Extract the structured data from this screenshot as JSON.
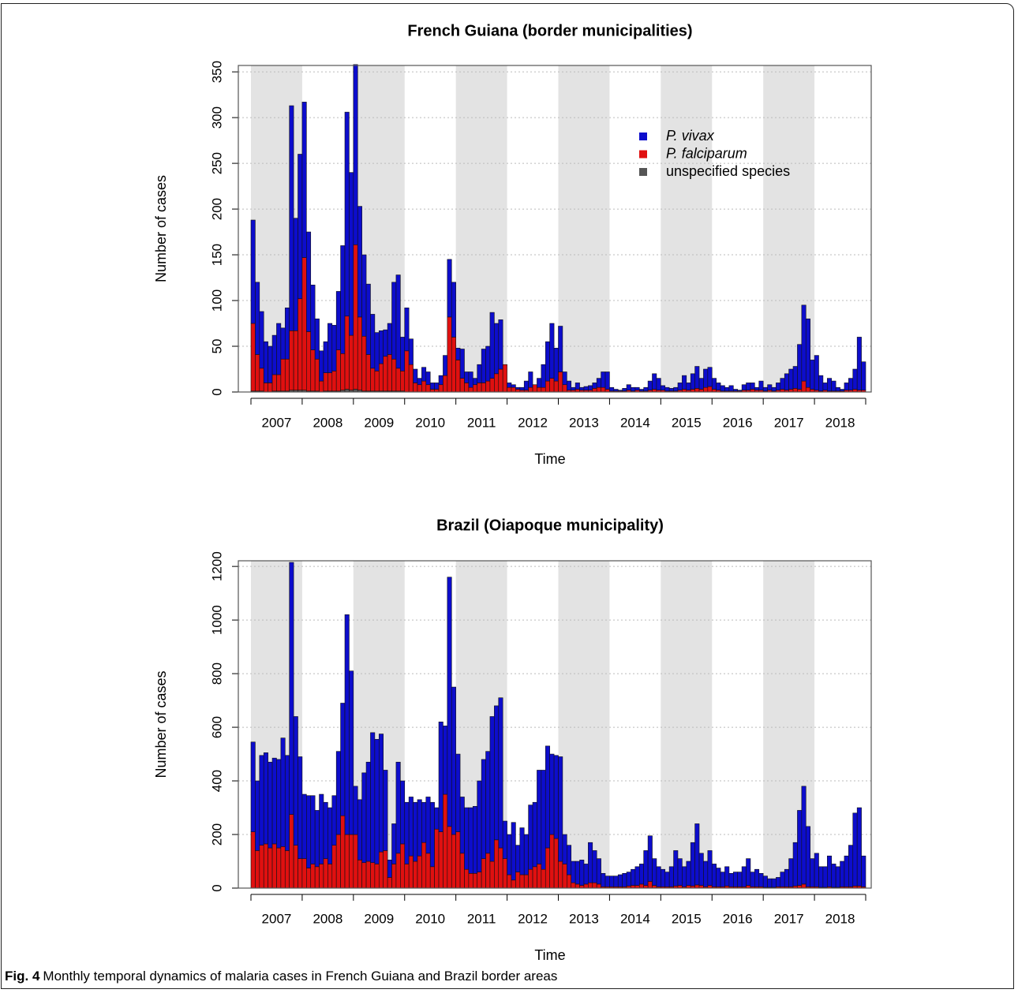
{
  "chart_data": [
    {
      "type": "bar",
      "stacked": true,
      "title": "French Guiana (border municipalities)",
      "x_label": "Time",
      "y_label": "Number of cases",
      "categories": [
        null,
        null,
        null,
        null,
        null,
        null,
        "2007",
        null,
        null,
        null,
        null,
        null,
        null,
        null,
        null,
        null,
        null,
        null,
        "2008",
        null,
        null,
        null,
        null,
        null,
        null,
        null,
        null,
        null,
        null,
        null,
        "2009",
        null,
        null,
        null,
        null,
        null,
        null,
        null,
        null,
        null,
        null,
        null,
        "2010",
        null,
        null,
        null,
        null,
        null,
        null,
        null,
        null,
        null,
        null,
        null,
        "2011",
        null,
        null,
        null,
        null,
        null,
        null,
        null,
        null,
        null,
        null,
        null,
        "2012",
        null,
        null,
        null,
        null,
        null,
        null,
        null,
        null,
        null,
        null,
        null,
        "2013",
        null,
        null,
        null,
        null,
        null,
        null,
        null,
        null,
        null,
        null,
        null,
        "2014",
        null,
        null,
        null,
        null,
        null,
        null,
        null,
        null,
        null,
        null,
        null,
        "2015",
        null,
        null,
        null,
        null,
        null,
        null,
        null,
        null,
        null,
        null,
        null,
        "2016",
        null,
        null,
        null,
        null,
        null,
        null,
        null,
        null,
        null,
        null,
        null,
        "2017",
        null,
        null,
        null,
        null,
        null,
        null,
        null,
        null,
        null,
        null,
        null,
        "2018",
        null,
        null,
        null,
        null,
        null
      ],
      "series": [
        {
          "name": "P. vivax",
          "color": "#0d0dcc",
          "values": [
            113,
            79,
            62,
            45,
            40,
            43,
            56,
            34,
            56,
            246,
            123,
            158,
            170,
            109,
            71,
            44,
            33,
            34,
            54,
            50,
            64,
            118,
            223,
            178,
            197,
            121,
            89,
            77,
            59,
            42,
            36,
            29,
            34,
            84,
            102,
            37,
            47,
            28,
            15,
            7,
            15,
            14,
            7,
            7,
            10,
            22,
            63,
            60,
            13,
            32,
            12,
            17,
            7,
            20,
            37,
            38,
            72,
            55,
            54,
            0,
            5,
            3,
            2,
            3,
            10,
            17,
            0,
            10,
            25,
            43,
            60,
            36,
            50,
            14,
            10,
            3,
            7,
            3,
            4,
            5,
            6,
            10,
            17,
            19,
            4,
            2,
            1,
            3,
            6,
            4,
            3,
            2,
            4,
            10,
            17,
            13,
            5,
            4,
            3,
            4,
            8,
            15,
            8,
            17,
            24,
            12,
            20,
            21,
            12,
            8,
            6,
            4,
            6,
            2,
            1,
            6,
            8,
            7,
            3,
            10,
            4,
            6,
            4,
            8,
            12,
            18,
            22,
            24,
            49,
            83,
            75,
            32,
            38,
            17,
            8,
            14,
            11,
            4,
            2,
            8,
            13,
            22,
            58,
            31
          ]
        },
        {
          "name": "P. falciparum",
          "color": "#e01010",
          "values": [
            74,
            40,
            25,
            10,
            10,
            18,
            18,
            35,
            35,
            65,
            65,
            100,
            145,
            65,
            45,
            35,
            12,
            20,
            20,
            22,
            45,
            40,
            80,
            60,
            158,
            80,
            60,
            40,
            25,
            22,
            30,
            38,
            40,
            35,
            25,
            22,
            45,
            30,
            10,
            8,
            12,
            8,
            3,
            3,
            8,
            18,
            82,
            60,
            35,
            15,
            10,
            5,
            8,
            10,
            10,
            12,
            15,
            20,
            25,
            30,
            5,
            5,
            3,
            2,
            2,
            5,
            8,
            5,
            5,
            12,
            15,
            12,
            22,
            8,
            2,
            2,
            3,
            2,
            2,
            2,
            4,
            5,
            5,
            3,
            1,
            1,
            1,
            1,
            2,
            1,
            2,
            1,
            1,
            2,
            3,
            2,
            2,
            1,
            1,
            1,
            2,
            3,
            2,
            3,
            4,
            3,
            5,
            6,
            3,
            2,
            1,
            1,
            1,
            1,
            1,
            2,
            2,
            3,
            2,
            2,
            1,
            2,
            1,
            2,
            3,
            2,
            3,
            4,
            3,
            12,
            5,
            3,
            2,
            1,
            2,
            1,
            1,
            1,
            1,
            2,
            2,
            3,
            2,
            2
          ]
        },
        {
          "name": "unspecified species",
          "color": "#555555",
          "values": [
            1,
            1,
            1,
            0,
            0,
            1,
            1,
            1,
            1,
            2,
            2,
            2,
            2,
            1,
            1,
            1,
            0,
            1,
            1,
            1,
            1,
            2,
            3,
            2,
            3,
            2,
            1,
            1,
            1,
            1,
            1,
            1,
            1,
            1,
            1,
            1,
            0,
            0,
            0,
            0,
            0,
            0,
            0,
            0,
            0,
            0,
            0,
            0,
            0,
            0,
            0,
            0,
            0,
            0,
            0,
            0,
            0,
            0,
            0,
            0,
            0,
            0,
            0,
            0,
            0,
            0,
            0,
            0,
            0,
            0,
            0,
            0,
            0,
            0,
            0,
            0,
            0,
            0,
            0,
            0,
            0,
            0,
            0,
            0,
            0,
            0,
            0,
            0,
            0,
            0,
            0,
            0,
            0,
            0,
            0,
            0,
            0,
            0,
            0,
            0,
            0,
            0,
            0,
            0,
            0,
            0,
            0,
            0,
            0,
            0,
            0,
            0,
            0,
            0,
            0,
            0,
            0,
            0,
            0,
            0,
            0,
            0,
            0,
            0,
            0,
            0,
            0,
            0,
            0,
            0,
            0,
            0,
            0,
            0,
            0,
            0,
            0,
            0,
            0,
            0,
            0,
            0,
            0,
            0
          ]
        }
      ],
      "ylim": [
        0,
        357
      ],
      "yticks": [
        0,
        50,
        100,
        150,
        200,
        250,
        300,
        350
      ],
      "grid": true,
      "legend": "top-right"
    },
    {
      "type": "bar",
      "stacked": true,
      "title": "Brazil (Oiapoque municipality)",
      "x_label": "Time",
      "y_label": "Number of cases",
      "categories": [
        null,
        null,
        null,
        null,
        null,
        null,
        "2007",
        null,
        null,
        null,
        null,
        null,
        null,
        null,
        null,
        null,
        null,
        null,
        "2008",
        null,
        null,
        null,
        null,
        null,
        null,
        null,
        null,
        null,
        null,
        null,
        "2009",
        null,
        null,
        null,
        null,
        null,
        null,
        null,
        null,
        null,
        null,
        null,
        "2010",
        null,
        null,
        null,
        null,
        null,
        null,
        null,
        null,
        null,
        null,
        null,
        "2011",
        null,
        null,
        null,
        null,
        null,
        null,
        null,
        null,
        null,
        null,
        null,
        "2012",
        null,
        null,
        null,
        null,
        null,
        null,
        null,
        null,
        null,
        null,
        null,
        "2013",
        null,
        null,
        null,
        null,
        null,
        null,
        null,
        null,
        null,
        null,
        null,
        "2014",
        null,
        null,
        null,
        null,
        null,
        null,
        null,
        null,
        null,
        null,
        null,
        "2015",
        null,
        null,
        null,
        null,
        null,
        null,
        null,
        null,
        null,
        null,
        null,
        "2016",
        null,
        null,
        null,
        null,
        null,
        null,
        null,
        null,
        null,
        null,
        null,
        "2017",
        null,
        null,
        null,
        null,
        null,
        null,
        null,
        null,
        null,
        null,
        null,
        "2018",
        null,
        null,
        null,
        null,
        null
      ],
      "series": [
        {
          "color": "#0d0dcc",
          "values": [
            335,
            260,
            335,
            340,
            320,
            320,
            330,
            405,
            355,
            940,
            480,
            380,
            240,
            270,
            255,
            210,
            260,
            210,
            210,
            185,
            310,
            420,
            820,
            610,
            180,
            225,
            335,
            370,
            485,
            465,
            440,
            300,
            65,
            150,
            340,
            235,
            230,
            220,
            220,
            210,
            150,
            210,
            240,
            80,
            410,
            255,
            930,
            550,
            290,
            210,
            230,
            245,
            250,
            340,
            370,
            380,
            540,
            500,
            560,
            140,
            150,
            215,
            100,
            175,
            150,
            240,
            240,
            350,
            370,
            380,
            300,
            310,
            390,
            110,
            110,
            80,
            85,
            95,
            75,
            150,
            120,
            95,
            50,
            40,
            40,
            40,
            45,
            50,
            52,
            60,
            70,
            75,
            130,
            170,
            100,
            75,
            65,
            55,
            75,
            132,
            100,
            75,
            90,
            162,
            228,
            120,
            95,
            130,
            85,
            70,
            55,
            72,
            50,
            55,
            55,
            75,
            100,
            55,
            65,
            50,
            42,
            32,
            32,
            35,
            55,
            65,
            105,
            162,
            280,
            365,
            225,
            105,
            125,
            77,
            77,
            115,
            87,
            77,
            95,
            115,
            155,
            272,
            292,
            115
          ]
        },
        {
          "color": "#e01010",
          "values": [
            210,
            140,
            160,
            165,
            150,
            165,
            150,
            155,
            140,
            275,
            160,
            110,
            110,
            75,
            90,
            80,
            90,
            110,
            90,
            160,
            200,
            270,
            200,
            200,
            200,
            105,
            95,
            100,
            95,
            90,
            135,
            140,
            40,
            90,
            130,
            165,
            90,
            120,
            100,
            120,
            170,
            130,
            80,
            220,
            210,
            350,
            230,
            200,
            210,
            130,
            70,
            55,
            55,
            60,
            110,
            130,
            100,
            180,
            150,
            110,
            50,
            30,
            60,
            50,
            50,
            70,
            80,
            90,
            70,
            150,
            200,
            185,
            100,
            90,
            50,
            20,
            15,
            10,
            15,
            20,
            20,
            15,
            5,
            5,
            5,
            5,
            5,
            5,
            8,
            10,
            10,
            15,
            10,
            25,
            10,
            5,
            5,
            5,
            5,
            8,
            10,
            5,
            10,
            8,
            12,
            10,
            5,
            10,
            5,
            5,
            5,
            8,
            5,
            5,
            5,
            5,
            10,
            5,
            5,
            5,
            3,
            3,
            3,
            5,
            5,
            5,
            5,
            8,
            10,
            15,
            5,
            5,
            5,
            3,
            3,
            5,
            3,
            3,
            5,
            5,
            5,
            8,
            8,
            5
          ]
        }
      ],
      "ylim": [
        0,
        1221
      ],
      "yticks": [
        0,
        200,
        400,
        600,
        800,
        1000,
        1200
      ],
      "grid": true
    }
  ],
  "caption": {
    "label": "Fig. 4",
    "text": "Monthly temporal dynamics of malaria cases in French Guiana and Brazil border areas"
  }
}
